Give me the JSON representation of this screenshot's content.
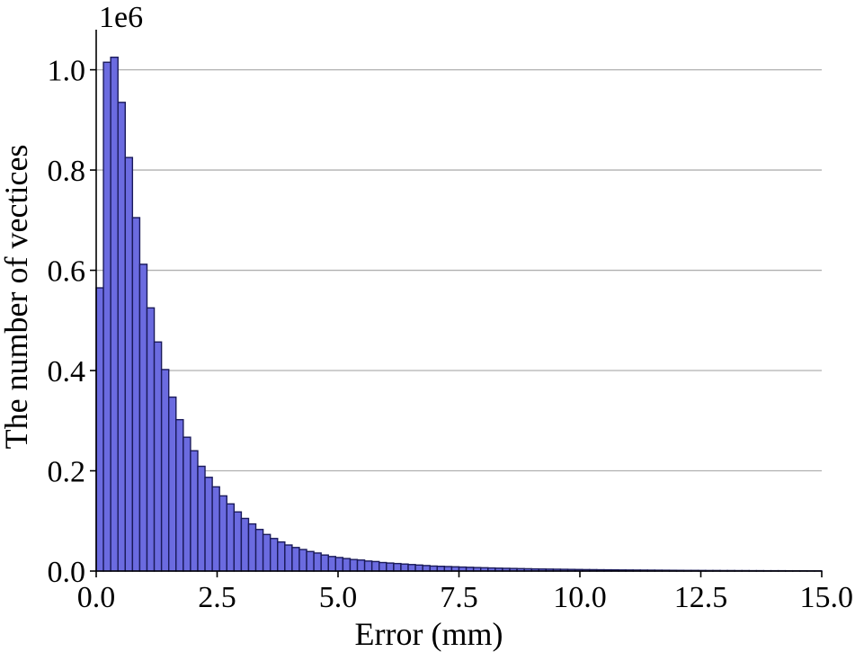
{
  "chart_data": {
    "type": "bar",
    "xlabel": "Error (mm)",
    "ylabel": "The number of vectices",
    "y_offset_label": "1e6",
    "xlim": [
      0,
      15
    ],
    "ylim": [
      0,
      1.08
    ],
    "xticks": [
      0,
      2.5,
      5,
      7.5,
      10,
      12.5,
      15
    ],
    "xtick_labels": [
      "0.0",
      "2.5",
      "5.0",
      "7.5",
      "10.0",
      "12.5",
      "15.0"
    ],
    "yticks": [
      0,
      0.2,
      0.4,
      0.6,
      0.8,
      1.0
    ],
    "ytick_labels": [
      "0.0",
      "0.2",
      "0.4",
      "0.6",
      "0.8",
      "1.0"
    ],
    "grid": "y",
    "bin_width": 0.15,
    "bin_start": 0,
    "values": [
      0.565,
      1.015,
      1.025,
      0.935,
      0.825,
      0.705,
      0.612,
      0.525,
      0.457,
      0.402,
      0.347,
      0.302,
      0.267,
      0.24,
      0.209,
      0.187,
      0.168,
      0.15,
      0.134,
      0.118,
      0.105,
      0.094,
      0.083,
      0.073,
      0.065,
      0.058,
      0.052,
      0.047,
      0.043,
      0.039,
      0.036,
      0.032,
      0.029,
      0.027,
      0.025,
      0.023,
      0.022,
      0.02,
      0.019,
      0.017,
      0.016,
      0.015,
      0.014,
      0.013,
      0.012,
      0.011,
      0.01,
      0.0095,
      0.009,
      0.0085,
      0.008,
      0.0075,
      0.007,
      0.0066,
      0.0062,
      0.0058,
      0.0055,
      0.0052,
      0.0049,
      0.0046,
      0.0043,
      0.0041,
      0.0039,
      0.0037,
      0.0035,
      0.0033,
      0.0031,
      0.0029,
      0.0028,
      0.0026,
      0.0025,
      0.0024,
      0.0022,
      0.0021,
      0.002,
      0.0019,
      0.0018,
      0.0017,
      0.0016,
      0.0015,
      0.0014,
      0.0013,
      0.0013,
      0.0012,
      0.0011,
      0.0011,
      0.001,
      0.001,
      0.0009,
      0.0009,
      0.0008,
      0.0008,
      0.0007,
      0.0007,
      0.0007,
      0.0006,
      0.0006,
      0.0006,
      0.0005,
      0.0005
    ],
    "bar_color": "#6b6be0",
    "edge_color": "#1a1a5a"
  }
}
